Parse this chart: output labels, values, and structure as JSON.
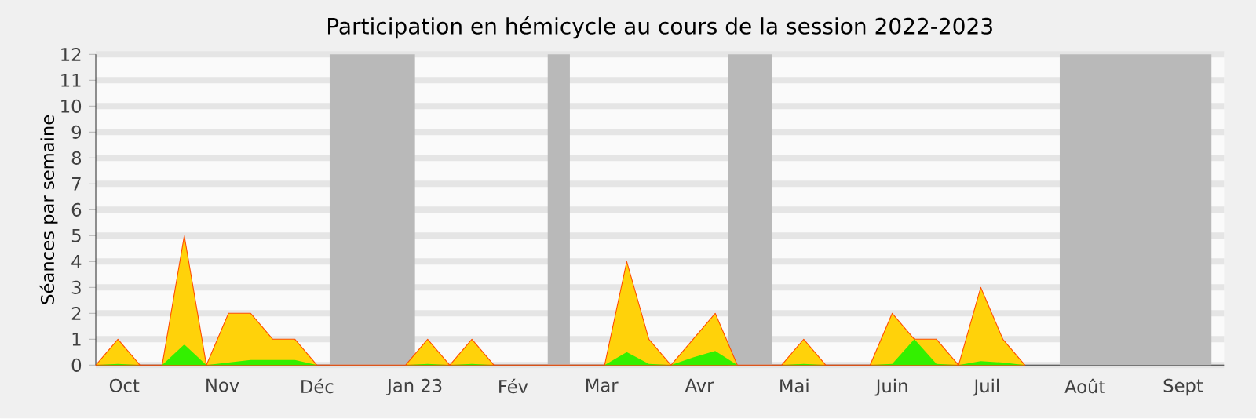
{
  "chart_data": {
    "type": "area",
    "title": "Participation en hémicycle au cours de la session 2022-2023",
    "ylabel": "Séances par semaine",
    "xlim": [
      "2022-09-22",
      "2023-09-14"
    ],
    "ylim": [
      0,
      12
    ],
    "yticks": [
      0,
      1,
      2,
      3,
      4,
      5,
      6,
      7,
      8,
      9,
      10,
      11,
      12
    ],
    "xticks": [
      {
        "value": "2022-10-01",
        "label": "Oct"
      },
      {
        "value": "2022-11-01",
        "label": "Nov"
      },
      {
        "value": "2022-12-01",
        "label": "Déc"
      },
      {
        "value": "2023-01-01",
        "label": "Jan 23"
      },
      {
        "value": "2023-02-01",
        "label": "Fév"
      },
      {
        "value": "2023-03-01",
        "label": "Mar"
      },
      {
        "value": "2023-04-01",
        "label": "Avr"
      },
      {
        "value": "2023-05-01",
        "label": "Mai"
      },
      {
        "value": "2023-06-01",
        "label": "Juin"
      },
      {
        "value": "2023-07-01",
        "label": "Juil"
      },
      {
        "value": "2023-08-01",
        "label": "Août"
      },
      {
        "value": "2023-09-01",
        "label": "Sept"
      }
    ],
    "grid": "y",
    "bands": [
      {
        "axis": "x",
        "from": "2022-12-05",
        "to": "2023-01-01",
        "color": "#b9b9b9"
      },
      {
        "axis": "x",
        "from": "2023-02-12",
        "to": "2023-02-19",
        "color": "#b9b9b9"
      },
      {
        "axis": "x",
        "from": "2023-04-10",
        "to": "2023-04-24",
        "color": "#b9b9b9"
      },
      {
        "axis": "x",
        "from": "2023-07-24",
        "to": "2023-09-10",
        "color": "#b9b9b9"
      }
    ],
    "x": [
      "2022-09-22",
      "2022-09-29",
      "2022-10-06",
      "2022-10-13",
      "2022-10-20",
      "2022-10-27",
      "2022-11-03",
      "2022-11-10",
      "2022-11-17",
      "2022-11-24",
      "2022-12-01",
      "2022-12-29",
      "2023-01-05",
      "2023-01-12",
      "2023-01-19",
      "2023-01-26",
      "2023-03-02",
      "2023-03-09",
      "2023-03-16",
      "2023-03-23",
      "2023-03-30",
      "2023-04-06",
      "2023-04-13",
      "2023-04-27",
      "2023-05-04",
      "2023-05-11",
      "2023-05-25",
      "2023-06-01",
      "2023-06-08",
      "2023-06-15",
      "2023-06-22",
      "2023-06-29",
      "2023-07-06",
      "2023-07-13"
    ],
    "series": [
      {
        "color": "#ffd20a",
        "values": [
          0,
          1,
          0,
          0,
          5,
          0,
          2,
          2,
          1,
          1,
          0,
          0,
          1,
          0,
          1,
          0,
          0,
          4,
          1,
          0,
          1,
          2,
          0,
          0,
          1,
          0,
          0,
          2,
          1,
          1,
          0,
          3,
          1,
          0
        ]
      },
      {
        "color": "#33f000",
        "values": [
          0,
          0.05,
          0,
          0,
          0.8,
          0,
          0.1,
          0.2,
          0.2,
          0.2,
          0,
          0,
          0.05,
          0,
          0.05,
          0,
          0,
          0.5,
          0.05,
          0,
          0.3,
          0.55,
          0,
          0,
          0.05,
          0,
          0,
          0.05,
          1,
          0.05,
          0,
          0.15,
          0.1,
          0
        ]
      }
    ]
  }
}
